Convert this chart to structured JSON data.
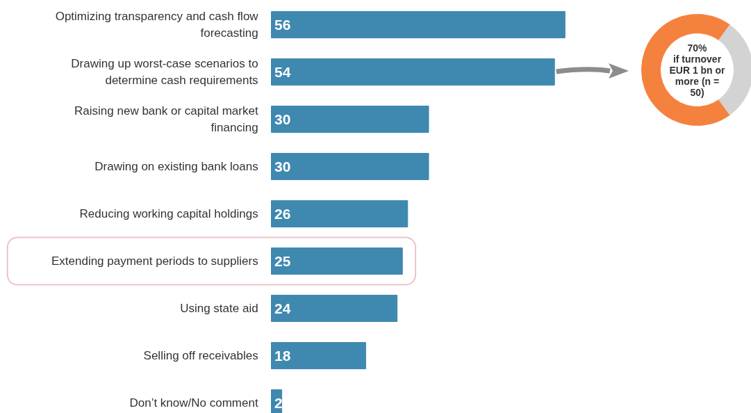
{
  "chart_data": [
    {
      "type": "bar",
      "orientation": "horizontal",
      "categories": [
        "Optimizing transparency and cash flow forecasting",
        "Drawing up worst-case scenarios to determine cash requirements",
        "Raising new bank or capital market financing",
        "Drawing on existing bank loans",
        "Reducing working capital holdings",
        "Extending payment periods to suppliers",
        "Using state aid",
        "Selling off receivables",
        "Don’t know/No comment"
      ],
      "values": [
        56,
        54,
        30,
        30,
        26,
        25,
        24,
        18,
        2
      ],
      "color": "#3f88b0",
      "data_labels": true
    },
    {
      "type": "donut",
      "title": "if turnover EUR 1 bn or more (n = 50)",
      "categories": [
        null,
        null
      ],
      "values": [
        70,
        30
      ],
      "colors": [
        "#f5813f",
        "#d3d3d3"
      ],
      "value_labels": [
        "70%",
        null
      ]
    }
  ]
}
